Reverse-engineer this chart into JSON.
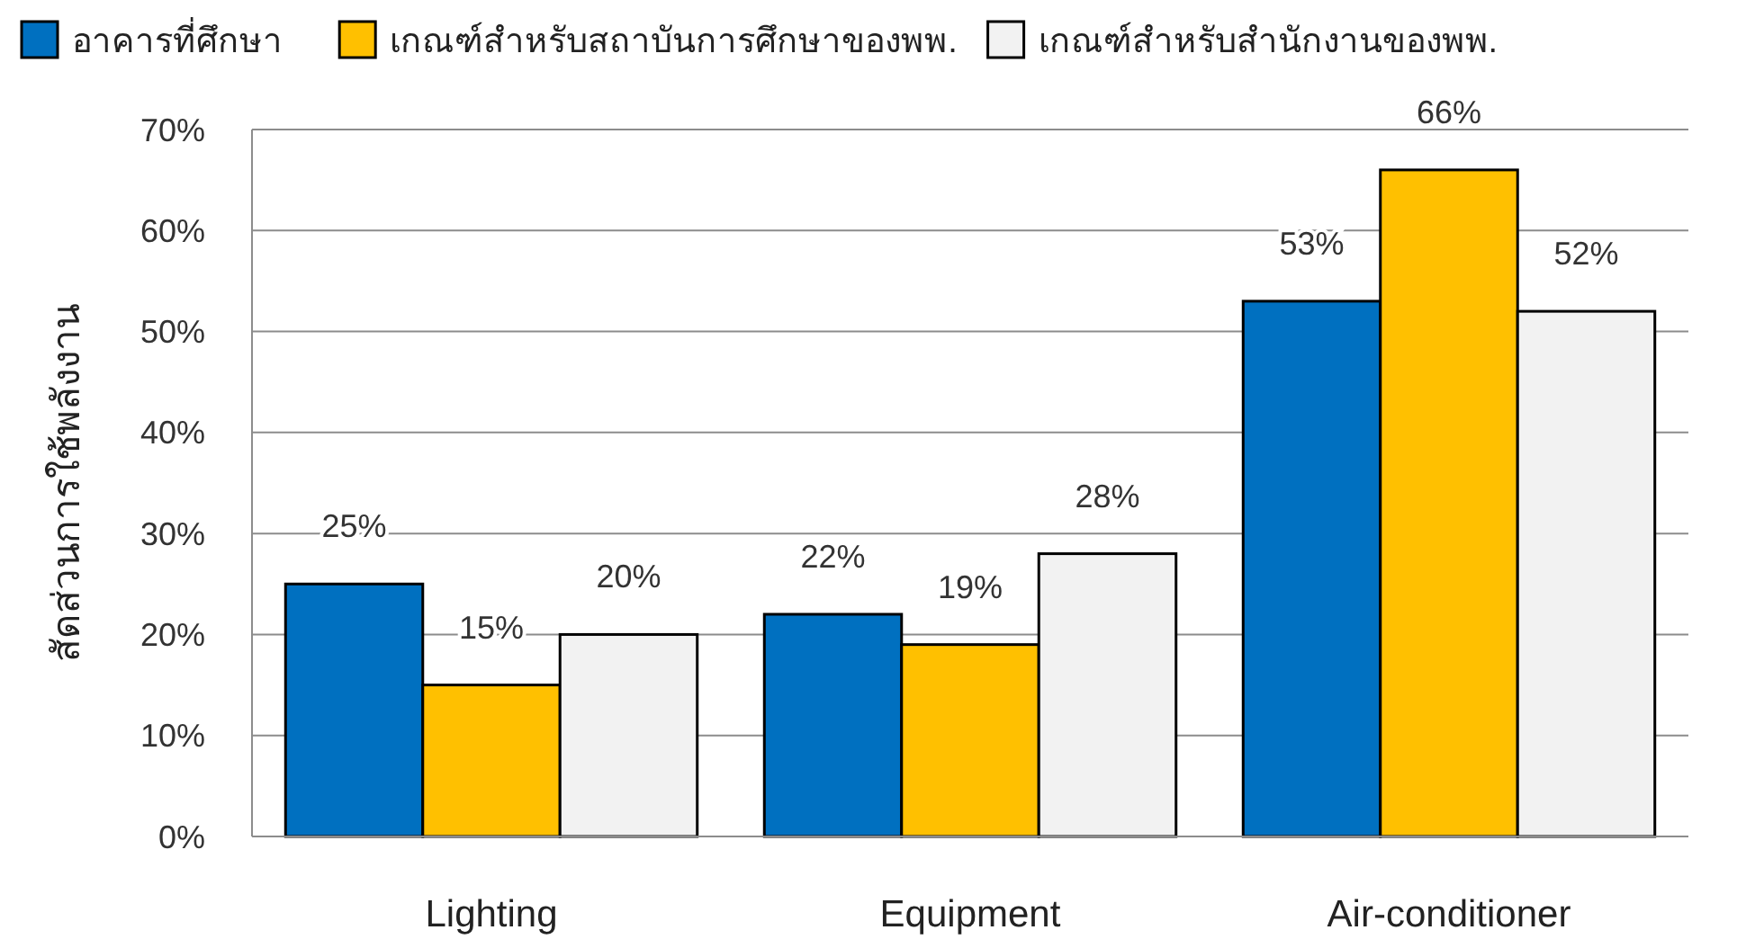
{
  "chart_data": {
    "type": "bar",
    "ylabel": "สัดส่วนการใช้พลังงาน",
    "categories": [
      "Lighting",
      "Equipment",
      "Air-conditioner"
    ],
    "series": [
      {
        "name": "อาคารที่ศึกษา",
        "color": "#0070c0",
        "values": [
          25,
          22,
          53
        ],
        "value_labels": [
          "25%",
          "22%",
          "53%"
        ]
      },
      {
        "name": "เกณฑ์สำหรับสถาบันการศึกษาของพพ.",
        "color": "#ffc000",
        "values": [
          15,
          19,
          66
        ],
        "value_labels": [
          "15%",
          "19%",
          "66%"
        ]
      },
      {
        "name": "เกณฑ์สำหรับสำนักงานของพพ.",
        "color": "#f2f2f2",
        "values": [
          20,
          28,
          52
        ],
        "value_labels": [
          "20%",
          "28%",
          "52%"
        ]
      }
    ],
    "ylim": [
      0,
      70
    ],
    "yticks": [
      {
        "value": 0,
        "label": "0%"
      },
      {
        "value": 10,
        "label": "10%"
      },
      {
        "value": 20,
        "label": "20%"
      },
      {
        "value": 30,
        "label": "30%"
      },
      {
        "value": 40,
        "label": "40%"
      },
      {
        "value": 50,
        "label": "50%"
      },
      {
        "value": 60,
        "label": "60%"
      },
      {
        "value": 70,
        "label": "70%"
      }
    ],
    "grid": "y",
    "legend": "top left"
  }
}
